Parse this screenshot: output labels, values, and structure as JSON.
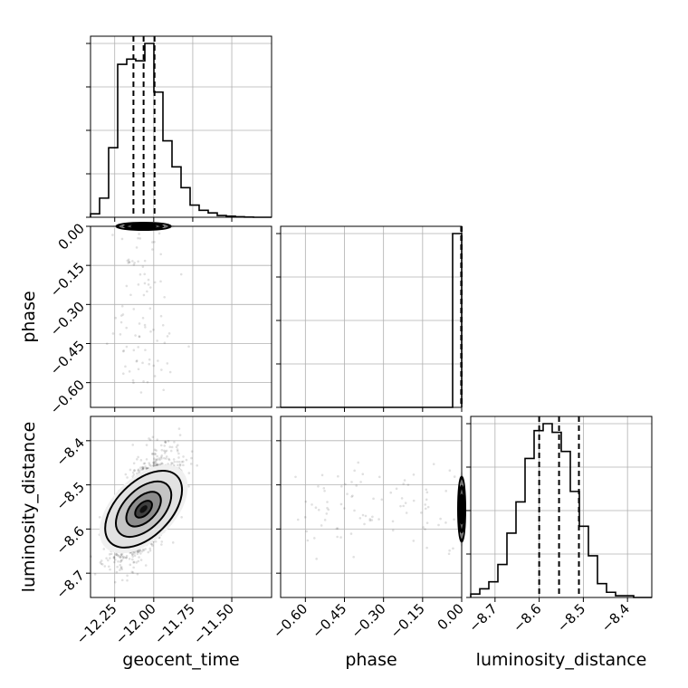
{
  "chart_data": {
    "type": "corner",
    "grid": true,
    "parameters": [
      "geocent_time",
      "phase",
      "luminosity_distance"
    ],
    "axis_labels": {
      "x": [
        "geocent_time",
        "phase",
        "luminosity_distance"
      ],
      "y": [
        "phase",
        "luminosity_distance"
      ]
    },
    "ranges": {
      "geocent_time": [
        -12.405,
        -11.245
      ],
      "phase": [
        -0.695,
        0.0
      ],
      "luminosity_distance": [
        -8.755,
        -8.345
      ]
    },
    "ticks": {
      "geocent_time": [
        {
          "v": -12.25,
          "label": "−12.25"
        },
        {
          "v": -12.0,
          "label": "−12.00"
        },
        {
          "v": -11.75,
          "label": "−11.75"
        },
        {
          "v": -11.5,
          "label": "−11.50"
        }
      ],
      "phase": [
        {
          "v": -0.6,
          "label": "−0.60"
        },
        {
          "v": -0.45,
          "label": "−0.45"
        },
        {
          "v": -0.3,
          "label": "−0.30"
        },
        {
          "v": -0.15,
          "label": "−0.15"
        },
        {
          "v": 0.0,
          "label": "0.00"
        }
      ],
      "luminosity_distance": [
        {
          "v": -8.7,
          "label": "−8.7"
        },
        {
          "v": -8.6,
          "label": "−8.6"
        },
        {
          "v": -8.5,
          "label": "−8.5"
        },
        {
          "v": -8.4,
          "label": "−8.4"
        }
      ]
    },
    "quantiles": {
      "geocent_time": [
        -12.13,
        -12.065,
        -11.995
      ],
      "phase": [
        -0.002,
        -0.001,
        0.0
      ],
      "luminosity_distance": [
        -8.6,
        -8.555,
        -8.51
      ]
    },
    "histograms": {
      "geocent_time": {
        "range": [
          -12.405,
          -11.245
        ],
        "counts": [
          0.02,
          0.11,
          0.4,
          0.88,
          0.91,
          0.9,
          1.0,
          0.72,
          0.44,
          0.29,
          0.17,
          0.07,
          0.04,
          0.025,
          0.01,
          0.006,
          0.003,
          0.001,
          0.0,
          0.0
        ]
      },
      "phase": {
        "range": [
          -0.695,
          0.0
        ],
        "counts": [
          0.0,
          0.0,
          0.0,
          0.0,
          0.0,
          0.0,
          0.0,
          0.0,
          0.0,
          0.0,
          0.0,
          0.0,
          0.0,
          0.0,
          0.0,
          0.0,
          0.0,
          0.0,
          0.0,
          1.0
        ]
      },
      "luminosity_distance": {
        "range": [
          -8.755,
          -8.345
        ],
        "counts": [
          0.02,
          0.05,
          0.09,
          0.19,
          0.37,
          0.55,
          0.8,
          0.96,
          1.0,
          0.95,
          0.84,
          0.61,
          0.41,
          0.24,
          0.08,
          0.03,
          0.01,
          0.01,
          0.0,
          0.0
        ]
      }
    },
    "posterior": {
      "correlation_geocent_time_luminosity_distance": 0.6,
      "means": {
        "geocent_time": -12.065,
        "phase": -0.001,
        "luminosity_distance": -8.555
      },
      "stds": {
        "geocent_time": 0.1,
        "phase": 0.002,
        "luminosity_distance": 0.055
      }
    }
  }
}
